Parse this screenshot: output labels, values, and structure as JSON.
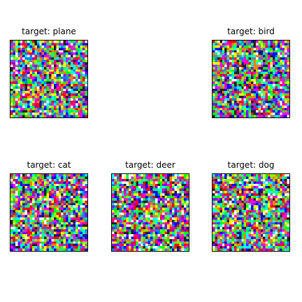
{
  "figure": {
    "panels": [
      {
        "title": "target: plane",
        "seed": 11
      },
      {
        "title": "target: bird",
        "seed": 29
      },
      {
        "title": "target: cat",
        "seed": 47
      },
      {
        "title": "target: deer",
        "seed": 83
      },
      {
        "title": "target: dog",
        "seed": 101
      }
    ],
    "palette": [
      "#ff00ff",
      "#00ff00",
      "#0000ff",
      "#ff0000",
      "#00ffff",
      "#ffff00",
      "#8000ff",
      "#ff8000",
      "#00ff80",
      "#808080",
      "#ffffff",
      "#202020",
      "#ff0080",
      "#80ff00",
      "#0080ff"
    ]
  }
}
